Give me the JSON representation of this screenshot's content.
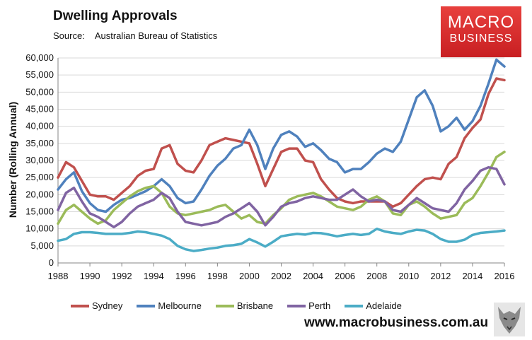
{
  "header": {
    "title": "Dwelling Approvals",
    "source_label": "Source:",
    "source_value": "Australian Bureau of Statistics"
  },
  "logo": {
    "line1": "MACRO",
    "line2": "BUSINESS"
  },
  "footer": {
    "website": "www.macrobusiness.com.au"
  },
  "chart_data": {
    "type": "line",
    "ylabel": "Number (Rolling Annual)",
    "xlabel": "",
    "xlim": [
      1988,
      2016
    ],
    "ylim": [
      0,
      60000
    ],
    "x_ticks": [
      "1988",
      "1990",
      "1992",
      "1994",
      "1996",
      "1998",
      "2000",
      "2002",
      "2004",
      "2006",
      "2008",
      "2010",
      "2012",
      "2014",
      "2016"
    ],
    "y_ticks": [
      "0",
      "5,000",
      "10,000",
      "15,000",
      "20,000",
      "25,000",
      "30,000",
      "35,000",
      "40,000",
      "45,000",
      "50,000",
      "55,000",
      "60,000"
    ],
    "legend_position": "bottom",
    "series": [
      {
        "name": "Sydney",
        "color": "#c0504d",
        "x": [
          1988,
          1988.5,
          1989,
          1989.5,
          1990,
          1990.5,
          1991,
          1991.5,
          1992,
          1992.5,
          1993,
          1993.5,
          1994,
          1994.5,
          1995,
          1995.5,
          1996,
          1996.5,
          1997,
          1997.5,
          1998,
          1998.5,
          1999,
          1999.5,
          2000,
          2000.5,
          2001,
          2001.5,
          2002,
          2002.5,
          2003,
          2003.5,
          2004,
          2004.5,
          2005,
          2005.5,
          2006,
          2006.5,
          2007,
          2007.5,
          2008,
          2008.5,
          2009,
          2009.5,
          2010,
          2010.5,
          2011,
          2011.5,
          2012,
          2012.5,
          2013,
          2013.5,
          2014,
          2014.5,
          2015,
          2015.5,
          2016
        ],
        "values": [
          25000,
          29500,
          28000,
          24000,
          20000,
          19500,
          19500,
          18500,
          20500,
          22500,
          25500,
          27000,
          27500,
          33500,
          34500,
          29000,
          27000,
          26500,
          30000,
          34500,
          35500,
          36500,
          36000,
          35500,
          35000,
          29000,
          22500,
          27500,
          32500,
          33500,
          33500,
          30000,
          29500,
          24500,
          21500,
          19000,
          18000,
          17500,
          18000,
          18000,
          18000,
          18000,
          16500,
          17500,
          20000,
          22500,
          24500,
          25000,
          24500,
          29000,
          31000,
          36500,
          39500,
          42000,
          49500,
          54000,
          53500
        ]
      },
      {
        "name": "Melbourne",
        "color": "#4f81bd",
        "x": [
          1988,
          1988.5,
          1989,
          1989.5,
          1990,
          1990.5,
          1991,
          1991.5,
          1992,
          1992.5,
          1993,
          1993.5,
          1994,
          1994.5,
          1995,
          1995.5,
          1996,
          1996.5,
          1997,
          1997.5,
          1998,
          1998.5,
          1999,
          1999.5,
          2000,
          2000.5,
          2001,
          2001.5,
          2002,
          2002.5,
          2003,
          2003.5,
          2004,
          2004.5,
          2005,
          2005.5,
          2006,
          2006.5,
          2007,
          2007.5,
          2008,
          2008.5,
          2009,
          2009.5,
          2010,
          2010.5,
          2011,
          2011.5,
          2012,
          2012.5,
          2013,
          2013.5,
          2014,
          2014.5,
          2015,
          2015.5,
          2016
        ],
        "values": [
          21500,
          24500,
          26500,
          21000,
          17500,
          15500,
          15000,
          17000,
          18500,
          19000,
          20000,
          21000,
          22500,
          24500,
          22500,
          19000,
          17500,
          18000,
          21500,
          25500,
          28500,
          30500,
          33500,
          34500,
          39000,
          34500,
          27500,
          33500,
          37500,
          38500,
          37000,
          34000,
          35000,
          33000,
          30500,
          29500,
          26500,
          27500,
          27500,
          29500,
          32000,
          33500,
          32500,
          35500,
          42000,
          48500,
          50500,
          46000,
          38500,
          40000,
          42500,
          39000,
          41500,
          46000,
          52500,
          59500,
          57500
        ]
      },
      {
        "name": "Brisbane",
        "color": "#9bbb59",
        "x": [
          1988,
          1988.5,
          1989,
          1989.5,
          1990,
          1990.5,
          1991,
          1991.5,
          1992,
          1992.5,
          1993,
          1993.5,
          1994,
          1994.5,
          1995,
          1995.5,
          1996,
          1996.5,
          1997,
          1997.5,
          1998,
          1998.5,
          1999,
          1999.5,
          2000,
          2000.5,
          2001,
          2001.5,
          2002,
          2002.5,
          2003,
          2003.5,
          2004,
          2004.5,
          2005,
          2005.5,
          2006,
          2006.5,
          2007,
          2007.5,
          2008,
          2008.5,
          2009,
          2009.5,
          2010,
          2010.5,
          2011,
          2011.5,
          2012,
          2012.5,
          2013,
          2013.5,
          2014,
          2014.5,
          2015,
          2015.5,
          2016
        ],
        "values": [
          11500,
          15500,
          17000,
          15000,
          13000,
          11500,
          12500,
          15500,
          17500,
          19500,
          21000,
          22000,
          22500,
          20500,
          16500,
          14500,
          14000,
          14500,
          15000,
          15500,
          16500,
          17000,
          15000,
          13000,
          14000,
          12000,
          11500,
          14000,
          16000,
          18500,
          19500,
          20000,
          20500,
          19500,
          18000,
          16500,
          16000,
          15500,
          16500,
          18500,
          19500,
          18000,
          14500,
          14000,
          17000,
          18000,
          16500,
          14500,
          13000,
          13500,
          14000,
          17500,
          19000,
          22500,
          26500,
          31000,
          32500
        ]
      },
      {
        "name": "Perth",
        "color": "#8064a2",
        "x": [
          1988,
          1988.5,
          1989,
          1989.5,
          1990,
          1990.5,
          1991,
          1991.5,
          1992,
          1992.5,
          1993,
          1993.5,
          1994,
          1994.5,
          1995,
          1995.5,
          1996,
          1996.5,
          1997,
          1997.5,
          1998,
          1998.5,
          1999,
          1999.5,
          2000,
          2000.5,
          2001,
          2001.5,
          2002,
          2002.5,
          2003,
          2003.5,
          2004,
          2004.5,
          2005,
          2005.5,
          2006,
          2006.5,
          2007,
          2007.5,
          2008,
          2008.5,
          2009,
          2009.5,
          2010,
          2010.5,
          2011,
          2011.5,
          2012,
          2012.5,
          2013,
          2013.5,
          2014,
          2014.5,
          2015,
          2015.5,
          2016
        ],
        "values": [
          15500,
          20500,
          22000,
          18000,
          14500,
          13500,
          12000,
          10500,
          12000,
          14500,
          16500,
          17500,
          18500,
          20500,
          19000,
          15000,
          12000,
          11500,
          11000,
          11500,
          12000,
          13500,
          14500,
          16000,
          17500,
          15000,
          11000,
          13500,
          16500,
          17500,
          18000,
          19000,
          19500,
          19000,
          18500,
          18500,
          20000,
          21500,
          19500,
          18000,
          18500,
          18000,
          15500,
          15000,
          17000,
          19000,
          17500,
          16000,
          15500,
          15000,
          17500,
          21500,
          24000,
          27000,
          28000,
          27500,
          23000
        ]
      },
      {
        "name": "Adelaide",
        "color": "#4bacc6",
        "x": [
          1988,
          1988.5,
          1989,
          1989.5,
          1990,
          1990.5,
          1991,
          1991.5,
          1992,
          1992.5,
          1993,
          1993.5,
          1994,
          1994.5,
          1995,
          1995.5,
          1996,
          1996.5,
          1997,
          1997.5,
          1998,
          1998.5,
          1999,
          1999.5,
          2000,
          2000.5,
          2001,
          2001.5,
          2002,
          2002.5,
          2003,
          2003.5,
          2004,
          2004.5,
          2005,
          2005.5,
          2006,
          2006.5,
          2007,
          2007.5,
          2008,
          2008.5,
          2009,
          2009.5,
          2010,
          2010.5,
          2011,
          2011.5,
          2012,
          2012.5,
          2013,
          2013.5,
          2014,
          2014.5,
          2015,
          2015.5,
          2016
        ],
        "values": [
          6500,
          7000,
          8500,
          9000,
          9000,
          8800,
          8500,
          8500,
          8500,
          8800,
          9200,
          9000,
          8500,
          8000,
          7000,
          5000,
          4000,
          3500,
          3800,
          4200,
          4500,
          5000,
          5200,
          5600,
          7000,
          6000,
          4800,
          6200,
          7800,
          8200,
          8500,
          8300,
          8800,
          8700,
          8300,
          7800,
          8200,
          8500,
          8200,
          8500,
          10000,
          9200,
          8800,
          8500,
          9200,
          9700,
          9500,
          8500,
          7000,
          6200,
          6200,
          6800,
          8200,
          8800,
          9000,
          9200,
          9500
        ]
      }
    ]
  }
}
